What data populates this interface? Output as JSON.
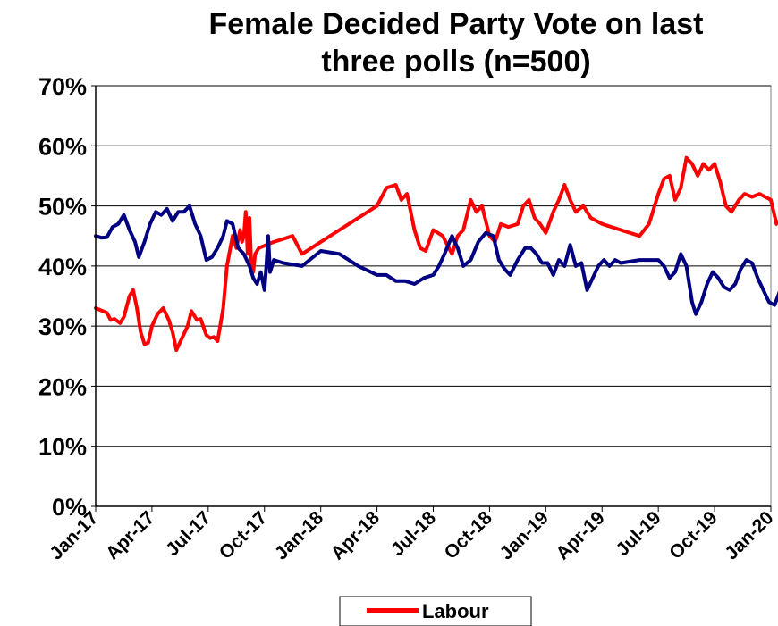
{
  "chart_data": {
    "type": "line",
    "title_line1": "Female Decided Party Vote on last",
    "title_line2": "three polls (n=500)",
    "xlabel": "",
    "ylabel": "",
    "ylim": [
      0,
      70
    ],
    "y_ticks": [
      "0%",
      "10%",
      "20%",
      "30%",
      "40%",
      "50%",
      "60%",
      "70%"
    ],
    "x_ticks": [
      "Jan-17",
      "Apr-17",
      "Jul-17",
      "Oct-17",
      "Jan-18",
      "Apr-18",
      "Jul-18",
      "Oct-18",
      "Jan-19",
      "Apr-19",
      "Jul-19",
      "Oct-19",
      "Jan-20"
    ],
    "x_range_months": [
      "Jan-17",
      "Jan-20"
    ],
    "grid": "horizontal",
    "legend": {
      "position": "bottom",
      "entries": [
        "Labour"
      ]
    },
    "series": [
      {
        "name": "Labour",
        "color": "#ff0000",
        "points": [
          [
            0.0,
            33
          ],
          [
            0.3,
            32.6
          ],
          [
            0.6,
            32.2
          ],
          [
            0.8,
            31
          ],
          [
            1.0,
            31.2
          ],
          [
            1.3,
            30.5
          ],
          [
            1.5,
            31.5
          ],
          [
            1.8,
            35
          ],
          [
            2.0,
            36
          ],
          [
            2.2,
            33
          ],
          [
            2.4,
            29
          ],
          [
            2.6,
            27
          ],
          [
            2.8,
            27.2
          ],
          [
            3.0,
            30
          ],
          [
            3.3,
            32
          ],
          [
            3.6,
            33
          ],
          [
            3.9,
            31
          ],
          [
            4.1,
            29
          ],
          [
            4.3,
            26
          ],
          [
            4.6,
            28
          ],
          [
            4.9,
            30
          ],
          [
            5.1,
            32.5
          ],
          [
            5.4,
            31
          ],
          [
            5.6,
            31.2
          ],
          [
            5.9,
            28.5
          ],
          [
            6.1,
            28
          ],
          [
            6.3,
            28.2
          ],
          [
            6.5,
            27.5
          ],
          [
            6.8,
            33
          ],
          [
            7.0,
            40
          ],
          [
            7.3,
            45
          ],
          [
            7.5,
            43
          ],
          [
            7.7,
            46
          ],
          [
            7.8,
            44
          ],
          [
            7.9,
            45
          ],
          [
            8.0,
            49
          ],
          [
            8.1,
            42
          ],
          [
            8.2,
            48
          ],
          [
            8.3,
            40
          ],
          [
            8.4,
            39
          ],
          [
            8.5,
            42
          ],
          [
            8.7,
            43
          ],
          [
            9.5,
            44
          ],
          [
            10.0,
            44.5
          ],
          [
            10.5,
            45
          ],
          [
            11.0,
            42
          ],
          [
            12.0,
            44
          ],
          [
            13.0,
            46
          ],
          [
            14.0,
            48
          ],
          [
            15.0,
            50
          ],
          [
            15.5,
            53
          ],
          [
            16.0,
            53.5
          ],
          [
            16.3,
            51
          ],
          [
            16.6,
            52
          ],
          [
            17.0,
            46
          ],
          [
            17.3,
            43
          ],
          [
            17.6,
            42.5
          ],
          [
            18.0,
            46
          ],
          [
            18.5,
            45
          ],
          [
            19.0,
            42
          ],
          [
            19.3,
            45
          ],
          [
            19.6,
            46
          ],
          [
            20.0,
            51
          ],
          [
            20.3,
            49
          ],
          [
            20.6,
            50
          ],
          [
            21.0,
            45
          ],
          [
            21.3,
            44
          ],
          [
            21.6,
            47
          ],
          [
            22.0,
            46.5
          ],
          [
            22.5,
            47
          ],
          [
            22.8,
            50
          ],
          [
            23.1,
            51
          ],
          [
            23.4,
            48
          ],
          [
            23.7,
            47
          ],
          [
            24.0,
            45.5
          ],
          [
            24.4,
            49
          ],
          [
            24.7,
            51
          ],
          [
            25.0,
            53.5
          ],
          [
            25.3,
            51
          ],
          [
            25.6,
            49
          ],
          [
            26.0,
            50
          ],
          [
            26.4,
            48
          ],
          [
            27.0,
            47
          ],
          [
            28.0,
            46
          ],
          [
            29.0,
            45
          ],
          [
            29.5,
            47
          ],
          [
            30.0,
            52
          ],
          [
            30.3,
            54.5
          ],
          [
            30.6,
            55
          ],
          [
            30.9,
            51
          ],
          [
            31.2,
            53
          ],
          [
            31.5,
            58
          ],
          [
            31.8,
            57
          ],
          [
            32.1,
            55
          ],
          [
            32.4,
            57
          ],
          [
            32.7,
            56
          ],
          [
            33.0,
            57
          ],
          [
            33.3,
            54
          ],
          [
            33.6,
            50
          ],
          [
            33.9,
            49
          ],
          [
            34.3,
            51
          ],
          [
            34.6,
            52
          ],
          [
            35.0,
            51.5
          ],
          [
            35.4,
            52
          ],
          [
            35.7,
            51.5
          ],
          [
            36.0,
            51
          ],
          [
            36.3,
            47
          ],
          [
            36.6,
            48
          ],
          [
            36.9,
            46.5
          ],
          [
            37.2,
            49
          ],
          [
            37.5,
            51
          ],
          [
            37.8,
            53
          ],
          [
            38.1,
            50
          ],
          [
            38.4,
            48
          ],
          [
            38.7,
            47
          ],
          [
            39.0,
            47
          ],
          [
            39.3,
            48
          ],
          [
            39.6,
            46
          ],
          [
            39.9,
            45
          ],
          [
            40.2,
            46
          ],
          [
            40.5,
            48
          ],
          [
            40.8,
            50
          ],
          [
            41.0,
            49
          ],
          [
            42.0,
            49
          ],
          [
            43.0,
            49
          ],
          [
            44.0,
            49
          ],
          [
            44.5,
            48.5
          ],
          [
            45.0,
            51.5
          ]
        ]
      },
      {
        "name": "",
        "color": "#000080",
        "points": [
          [
            0.0,
            45
          ],
          [
            0.3,
            44.7
          ],
          [
            0.6,
            44.8
          ],
          [
            0.9,
            46.5
          ],
          [
            1.2,
            47
          ],
          [
            1.5,
            48.5
          ],
          [
            1.8,
            46
          ],
          [
            2.1,
            44
          ],
          [
            2.3,
            41.5
          ],
          [
            2.6,
            44
          ],
          [
            2.9,
            47
          ],
          [
            3.2,
            49
          ],
          [
            3.5,
            48.5
          ],
          [
            3.8,
            49.5
          ],
          [
            4.1,
            47.5
          ],
          [
            4.4,
            49
          ],
          [
            4.7,
            49
          ],
          [
            5.0,
            50
          ],
          [
            5.3,
            47
          ],
          [
            5.6,
            45
          ],
          [
            5.9,
            41
          ],
          [
            6.2,
            41.5
          ],
          [
            6.5,
            43
          ],
          [
            6.8,
            45
          ],
          [
            7.0,
            47.5
          ],
          [
            7.3,
            47
          ],
          [
            7.6,
            43
          ],
          [
            7.9,
            42
          ],
          [
            8.2,
            40
          ],
          [
            8.4,
            38
          ],
          [
            8.6,
            37
          ],
          [
            8.8,
            39
          ],
          [
            9.0,
            36
          ],
          [
            9.1,
            40
          ],
          [
            9.2,
            45
          ],
          [
            9.3,
            39
          ],
          [
            9.5,
            41
          ],
          [
            10.0,
            40.5
          ],
          [
            11.0,
            40
          ],
          [
            12.0,
            42.5
          ],
          [
            13.0,
            42
          ],
          [
            14.0,
            40
          ],
          [
            15.0,
            38.5
          ],
          [
            15.5,
            38.5
          ],
          [
            16.0,
            37.5
          ],
          [
            16.5,
            37.5
          ],
          [
            17.0,
            37
          ],
          [
            17.5,
            38
          ],
          [
            18.0,
            38.5
          ],
          [
            18.3,
            40
          ],
          [
            18.6,
            42
          ],
          [
            19.0,
            45
          ],
          [
            19.3,
            43
          ],
          [
            19.6,
            40
          ],
          [
            20.0,
            41
          ],
          [
            20.4,
            44
          ],
          [
            20.8,
            45.5
          ],
          [
            21.2,
            45
          ],
          [
            21.5,
            41
          ],
          [
            21.8,
            39.5
          ],
          [
            22.1,
            38.5
          ],
          [
            22.5,
            41
          ],
          [
            22.9,
            43
          ],
          [
            23.2,
            43
          ],
          [
            23.5,
            42
          ],
          [
            23.8,
            40.5
          ],
          [
            24.1,
            40.5
          ],
          [
            24.4,
            38.5
          ],
          [
            24.7,
            41
          ],
          [
            25.0,
            40
          ],
          [
            25.3,
            43.5
          ],
          [
            25.6,
            40
          ],
          [
            25.9,
            40.5
          ],
          [
            26.2,
            36
          ],
          [
            26.5,
            38
          ],
          [
            26.8,
            40
          ],
          [
            27.1,
            41
          ],
          [
            27.4,
            40
          ],
          [
            27.7,
            41
          ],
          [
            28.0,
            40.5
          ],
          [
            29.0,
            41
          ],
          [
            30.0,
            41
          ],
          [
            30.3,
            40
          ],
          [
            30.6,
            38
          ],
          [
            30.9,
            39
          ],
          [
            31.2,
            42
          ],
          [
            31.5,
            40
          ],
          [
            31.8,
            34
          ],
          [
            32.0,
            32
          ],
          [
            32.3,
            34
          ],
          [
            32.6,
            37
          ],
          [
            32.9,
            39
          ],
          [
            33.2,
            38
          ],
          [
            33.5,
            36.5
          ],
          [
            33.8,
            36
          ],
          [
            34.1,
            37
          ],
          [
            34.4,
            39.5
          ],
          [
            34.7,
            41
          ],
          [
            35.0,
            40.5
          ],
          [
            35.3,
            38
          ],
          [
            35.6,
            36
          ],
          [
            35.9,
            34
          ],
          [
            36.2,
            33.5
          ],
          [
            36.5,
            36
          ],
          [
            36.8,
            37.5
          ],
          [
            37.1,
            40.5
          ],
          [
            37.4,
            39
          ],
          [
            37.7,
            39
          ],
          [
            38.0,
            40.5
          ],
          [
            38.3,
            41
          ],
          [
            38.6,
            39.5
          ],
          [
            38.9,
            40
          ],
          [
            39.2,
            41
          ],
          [
            39.5,
            42.5
          ],
          [
            39.8,
            43
          ],
          [
            40.1,
            41
          ],
          [
            40.4,
            43
          ],
          [
            40.7,
            42.5
          ],
          [
            41.0,
            42
          ],
          [
            41.3,
            42
          ],
          [
            41.6,
            43
          ],
          [
            41.9,
            44
          ],
          [
            42.2,
            42
          ],
          [
            42.5,
            41
          ],
          [
            43.0,
            40.5
          ],
          [
            44.0,
            40
          ],
          [
            44.5,
            37.5
          ],
          [
            45.0,
            36.5
          ]
        ]
      }
    ]
  }
}
